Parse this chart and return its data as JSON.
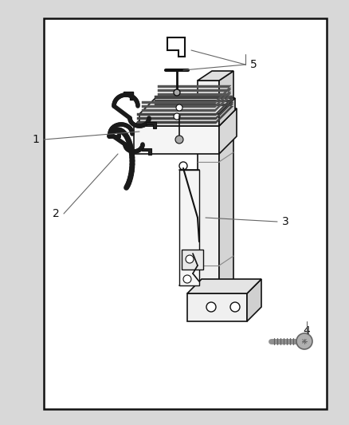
{
  "bg_color": "#d8d8d8",
  "box_color": "#ffffff",
  "box_edge_color": "#111111",
  "line_color": "#111111",
  "figsize": [
    4.38,
    5.33
  ],
  "dpi": 100
}
